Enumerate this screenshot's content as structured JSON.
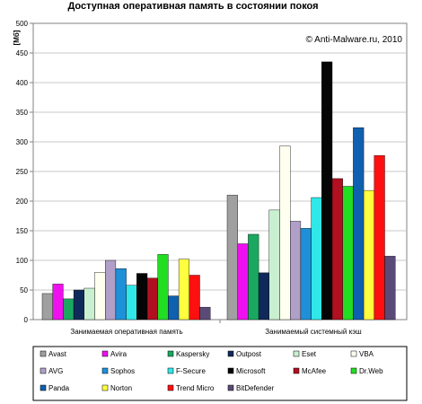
{
  "chart_data": {
    "type": "bar",
    "title": "Доступная оперативная память в состоянии покоя",
    "ylabel": "[Мб]",
    "annotation": "© Anti-Malware.ru,  2010",
    "ylim": [
      0,
      500
    ],
    "yticks": [
      0,
      50,
      100,
      150,
      200,
      250,
      300,
      350,
      400,
      450,
      500
    ],
    "grid": true,
    "legend": "bottom",
    "categories": [
      "Занимаемая оперативная память",
      "Занимаемый системный кэш"
    ],
    "series": [
      {
        "name": "Avast",
        "color": "#a0a0a0",
        "values": [
          44,
          210
        ]
      },
      {
        "name": "Avira",
        "color": "#ee10ee",
        "values": [
          60,
          128
        ]
      },
      {
        "name": "Kaspersky",
        "color": "#1aa860",
        "values": [
          35,
          144
        ]
      },
      {
        "name": "Outpost",
        "color": "#0f2a5a",
        "values": [
          50,
          79
        ]
      },
      {
        "name": "Eset",
        "color": "#c8f0d0",
        "values": [
          53,
          185
        ]
      },
      {
        "name": "VBA",
        "color": "#fffff0",
        "values": [
          80,
          293
        ]
      },
      {
        "name": "AVG",
        "color": "#b0a0c8",
        "values": [
          100,
          166
        ]
      },
      {
        "name": "Sophos",
        "color": "#1e90d8",
        "values": [
          86,
          154
        ]
      },
      {
        "name": "F-Secure",
        "color": "#30e8e8",
        "values": [
          58,
          206
        ]
      },
      {
        "name": "Microsoft",
        "color": "#050505",
        "values": [
          78,
          435
        ]
      },
      {
        "name": "McAfee",
        "color": "#b01020",
        "values": [
          70,
          238
        ]
      },
      {
        "name": "Dr.Web",
        "color": "#22dd22",
        "values": [
          110,
          225
        ]
      },
      {
        "name": "Panda",
        "color": "#1060b0",
        "values": [
          40,
          324
        ]
      },
      {
        "name": "Norton",
        "color": "#ffff40",
        "values": [
          102,
          218
        ]
      },
      {
        "name": "Trend Micro",
        "color": "#ff1010",
        "values": [
          75,
          277
        ]
      },
      {
        "name": "BitDefender",
        "color": "#5a4a78",
        "values": [
          21,
          107
        ]
      }
    ]
  }
}
